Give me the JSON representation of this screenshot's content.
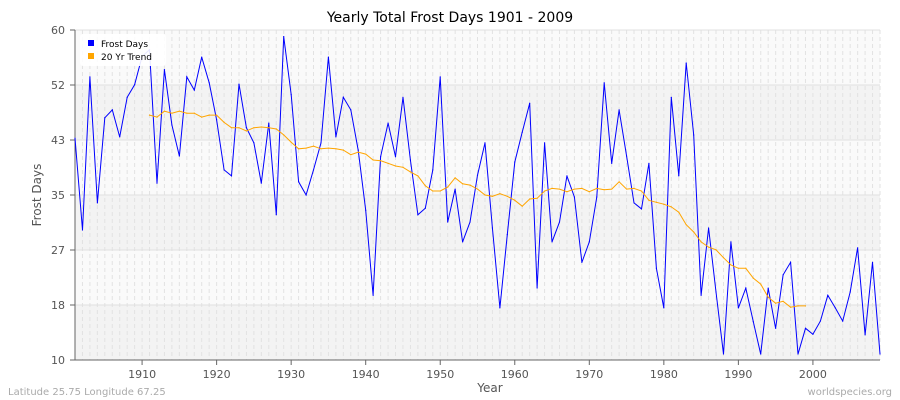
{
  "chart_data": {
    "type": "line",
    "title": "Yearly Total Frost Days 1901 - 2009",
    "xlabel": "Year",
    "ylabel": "Frost Days",
    "xlim": [
      1901,
      2009
    ],
    "ylim": [
      10,
      60
    ],
    "x_ticks": [
      1910,
      1920,
      1930,
      1940,
      1950,
      1960,
      1970,
      1980,
      1990,
      2000
    ],
    "y_ticks": [
      10,
      18,
      27,
      35,
      43,
      52,
      60
    ],
    "grid": true,
    "legend_position": "top-left",
    "footer_left": "Latitude 25.75 Longitude 67.25",
    "footer_right": "worldspecies.org",
    "series": [
      {
        "name": "Frost Days",
        "color": "#0000ff",
        "x_start": 1901,
        "values": [
          43.6,
          29.7,
          52.9,
          33.8,
          46.7,
          47.9,
          43.8,
          49.8,
          51.7,
          56,
          57,
          36.8,
          54,
          45.6,
          40.9,
          52.9,
          50.9,
          55.9,
          52,
          46.4,
          38.8,
          37.9,
          51.8,
          45.2,
          42.9,
          36.8,
          45.9,
          32,
          59,
          50.2,
          37,
          35,
          38.8,
          42.9,
          55.9,
          43.8,
          49.8,
          47.9,
          41.8,
          32.7,
          19.8,
          40.8,
          45.9,
          40.8,
          49.8,
          40.3,
          32,
          33,
          38.8,
          52.9,
          30.9,
          35.9,
          27.9,
          30.9,
          38,
          42.9,
          30,
          17.9,
          29,
          40,
          44.5,
          48.9,
          20.9,
          42.9,
          27.9,
          30.9,
          37.9,
          34.7,
          24.8,
          27.9,
          34.7,
          52,
          39.8,
          47.9,
          40.9,
          33.8,
          32.9,
          39.8,
          23.9,
          17.9,
          49.8,
          37.9,
          55,
          44.1,
          19.8,
          30,
          20.3,
          10.9,
          27.9,
          17.9,
          20.9,
          15.8,
          10.9,
          20.9,
          14.8,
          22.9,
          24.8,
          10.9,
          14.8,
          13.9,
          15.9,
          19.8,
          17.9,
          15.9,
          20.3,
          27,
          13.8,
          24.8,
          10.9
        ]
      },
      {
        "name": "20 Yr Trend",
        "color": "#ffa500",
        "x_start": 1911,
        "values": [
          47.1,
          46.8,
          47.7,
          47.4,
          47.7,
          47.4,
          47.4,
          46.8,
          47.1,
          47.1,
          46.0,
          45.2,
          45.2,
          44.7,
          45.2,
          45.3,
          45.2,
          45.0,
          44.1,
          43.0,
          42.0,
          42.1,
          42.4,
          42.0,
          42.1,
          42.0,
          41.8,
          41.1,
          41.5,
          41.2,
          40.3,
          40.2,
          39.8,
          39.4,
          39.2,
          38.5,
          37.9,
          36.4,
          35.6,
          35.6,
          36.2,
          37.6,
          36.7,
          36.5,
          35.9,
          35.0,
          34.8,
          35.2,
          34.8,
          34.2,
          33.3,
          34.4,
          34.5,
          35.6,
          36.0,
          35.9,
          35.5,
          35.9,
          36.0,
          35.5,
          36.0,
          35.8,
          35.9,
          37.0,
          35.9,
          36.0,
          35.6,
          34.2,
          33.9,
          33.6,
          33.2,
          32.4,
          30.5,
          29.4,
          27.9,
          27.1,
          26.7,
          25.5,
          24.4,
          23.9,
          23.9,
          22.4,
          21.5,
          19.5,
          18.6,
          18.9,
          18.0,
          18.2,
          18.2
        ]
      }
    ]
  }
}
